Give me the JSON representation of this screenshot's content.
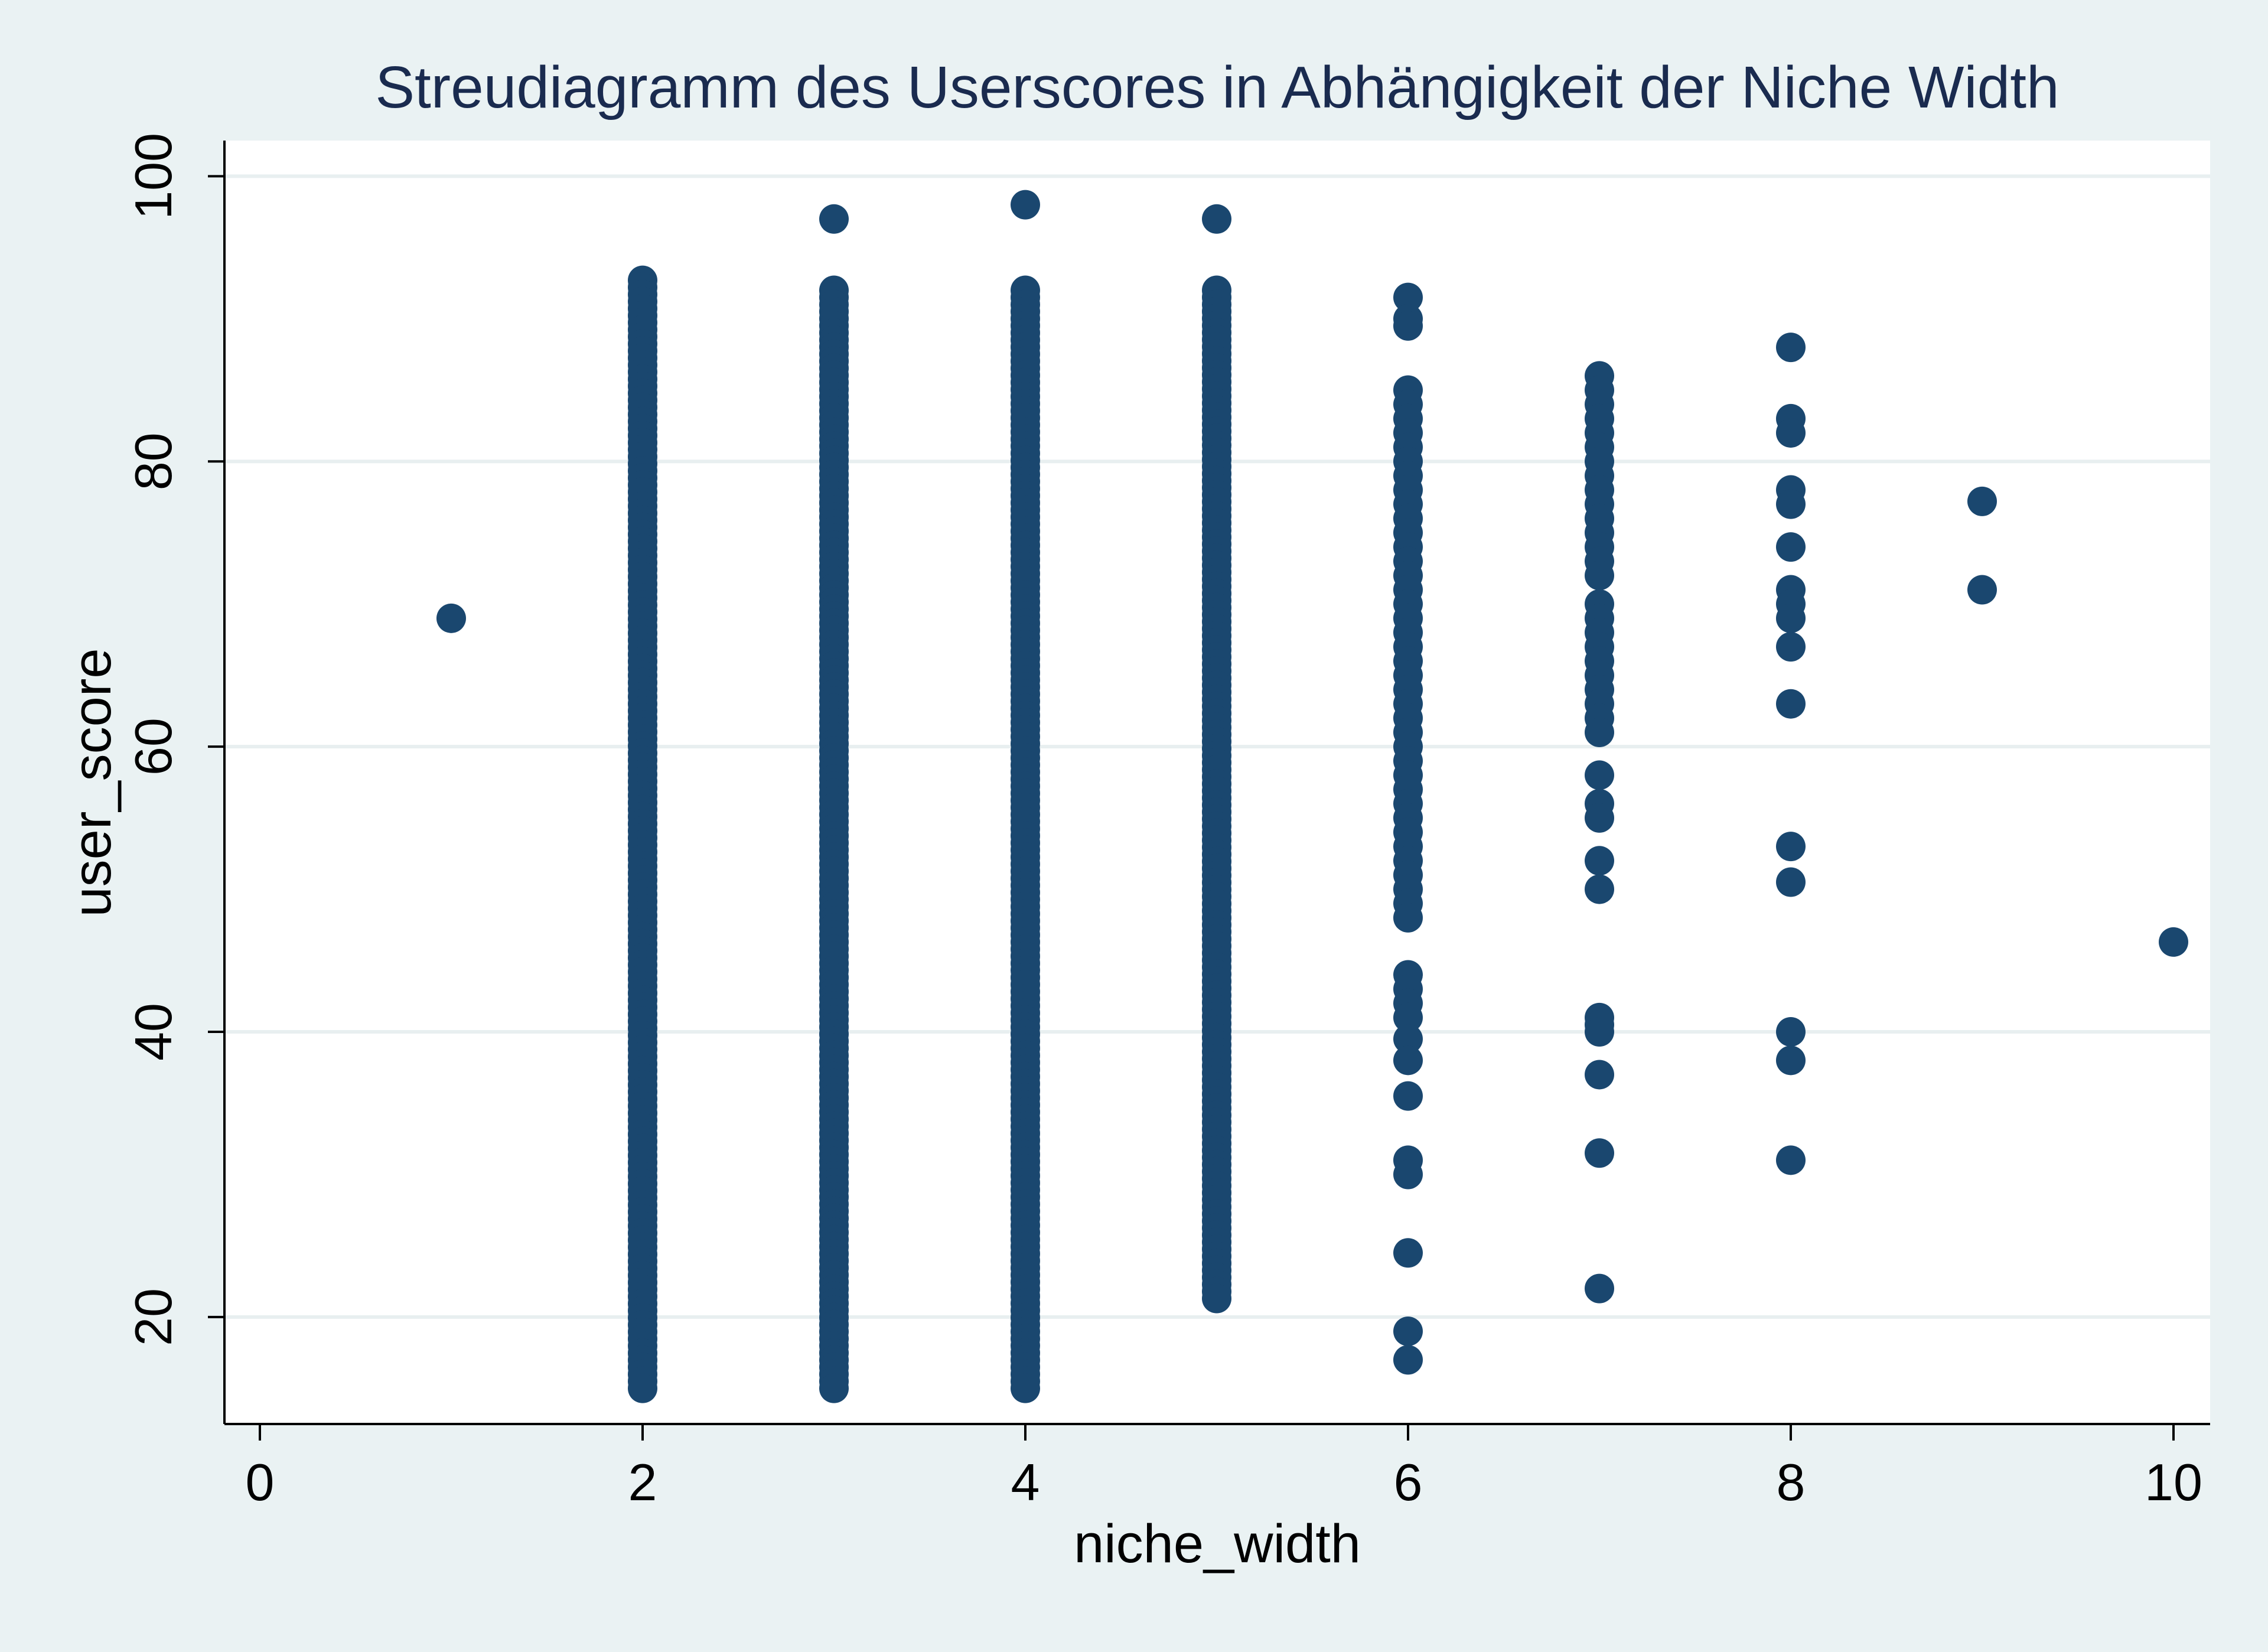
{
  "chart_data": {
    "type": "scatter",
    "title": "Streudiagramm des Userscores in Abhängigkeit der Niche Width",
    "xlabel": "niche_width",
    "ylabel": "user_score",
    "xlim": [
      0,
      10
    ],
    "ylim": [
      12.5,
      102.5
    ],
    "xticks": [
      0,
      2,
      4,
      6,
      8,
      10
    ],
    "yticks": [
      20,
      40,
      60,
      80,
      100
    ],
    "xtick_labels": [
      "0",
      "2",
      "4",
      "6",
      "8",
      "10"
    ],
    "ytick_labels": [
      "20",
      "40",
      "60",
      "80",
      "100"
    ],
    "grid": "horizontal",
    "legend": "none",
    "colors": {
      "background": "#eaf2f3",
      "plot_background": "#ffffff",
      "marker": "#1a476f",
      "grid": "#e8eff0",
      "axis": "#000000",
      "title": "#1a2b4f"
    },
    "columns": [
      {
        "x": 2,
        "y_min": 15,
        "y_max": 92.7
      },
      {
        "x": 3,
        "y_min": 15,
        "y_max": 92
      },
      {
        "x": 4,
        "y_min": 15,
        "y_max": 92
      },
      {
        "x": 5,
        "y_min": 21.3,
        "y_max": 92
      }
    ],
    "points": [
      {
        "x": 1,
        "y": 69
      },
      {
        "x": 3,
        "y": 97
      },
      {
        "x": 4,
        "y": 98
      },
      {
        "x": 5,
        "y": 97
      },
      {
        "x": 6,
        "y": 91.5
      },
      {
        "x": 6,
        "y": 90
      },
      {
        "x": 6,
        "y": 89.5
      },
      {
        "x": 6,
        "y": 85
      },
      {
        "x": 6,
        "y": 84
      },
      {
        "x": 6,
        "y": 83
      },
      {
        "x": 6,
        "y": 82
      },
      {
        "x": 6,
        "y": 81
      },
      {
        "x": 6,
        "y": 80
      },
      {
        "x": 6,
        "y": 79
      },
      {
        "x": 6,
        "y": 78
      },
      {
        "x": 6,
        "y": 77
      },
      {
        "x": 6,
        "y": 76
      },
      {
        "x": 6,
        "y": 75
      },
      {
        "x": 6,
        "y": 74
      },
      {
        "x": 6,
        "y": 73
      },
      {
        "x": 6,
        "y": 72
      },
      {
        "x": 6,
        "y": 71
      },
      {
        "x": 6,
        "y": 70
      },
      {
        "x": 6,
        "y": 69
      },
      {
        "x": 6,
        "y": 68
      },
      {
        "x": 6,
        "y": 67
      },
      {
        "x": 6,
        "y": 66
      },
      {
        "x": 6,
        "y": 65
      },
      {
        "x": 6,
        "y": 64
      },
      {
        "x": 6,
        "y": 63
      },
      {
        "x": 6,
        "y": 62
      },
      {
        "x": 6,
        "y": 61
      },
      {
        "x": 6,
        "y": 60
      },
      {
        "x": 6,
        "y": 59
      },
      {
        "x": 6,
        "y": 58
      },
      {
        "x": 6,
        "y": 57
      },
      {
        "x": 6,
        "y": 56
      },
      {
        "x": 6,
        "y": 55
      },
      {
        "x": 6,
        "y": 54
      },
      {
        "x": 6,
        "y": 53
      },
      {
        "x": 6,
        "y": 52
      },
      {
        "x": 6,
        "y": 51
      },
      {
        "x": 6,
        "y": 50
      },
      {
        "x": 6,
        "y": 49
      },
      {
        "x": 6,
        "y": 48
      },
      {
        "x": 6,
        "y": 44
      },
      {
        "x": 6,
        "y": 43
      },
      {
        "x": 6,
        "y": 42
      },
      {
        "x": 6,
        "y": 41
      },
      {
        "x": 6,
        "y": 39.5
      },
      {
        "x": 6,
        "y": 38
      },
      {
        "x": 6,
        "y": 35.5
      },
      {
        "x": 6,
        "y": 31
      },
      {
        "x": 6,
        "y": 30
      },
      {
        "x": 6,
        "y": 24.5
      },
      {
        "x": 6,
        "y": 19
      },
      {
        "x": 6,
        "y": 17
      },
      {
        "x": 7,
        "y": 86
      },
      {
        "x": 7,
        "y": 85
      },
      {
        "x": 7,
        "y": 84
      },
      {
        "x": 7,
        "y": 83
      },
      {
        "x": 7,
        "y": 82
      },
      {
        "x": 7,
        "y": 81
      },
      {
        "x": 7,
        "y": 80
      },
      {
        "x": 7,
        "y": 79
      },
      {
        "x": 7,
        "y": 78
      },
      {
        "x": 7,
        "y": 77
      },
      {
        "x": 7,
        "y": 76
      },
      {
        "x": 7,
        "y": 75
      },
      {
        "x": 7,
        "y": 74
      },
      {
        "x": 7,
        "y": 73
      },
      {
        "x": 7,
        "y": 72
      },
      {
        "x": 7,
        "y": 70
      },
      {
        "x": 7,
        "y": 69
      },
      {
        "x": 7,
        "y": 68
      },
      {
        "x": 7,
        "y": 67
      },
      {
        "x": 7,
        "y": 66
      },
      {
        "x": 7,
        "y": 65
      },
      {
        "x": 7,
        "y": 64
      },
      {
        "x": 7,
        "y": 63
      },
      {
        "x": 7,
        "y": 62
      },
      {
        "x": 7,
        "y": 61
      },
      {
        "x": 7,
        "y": 58
      },
      {
        "x": 7,
        "y": 56
      },
      {
        "x": 7,
        "y": 55
      },
      {
        "x": 7,
        "y": 52
      },
      {
        "x": 7,
        "y": 50
      },
      {
        "x": 7,
        "y": 41
      },
      {
        "x": 7,
        "y": 40.5
      },
      {
        "x": 7,
        "y": 40
      },
      {
        "x": 7,
        "y": 37
      },
      {
        "x": 7,
        "y": 31.5
      },
      {
        "x": 7,
        "y": 22
      },
      {
        "x": 8,
        "y": 88
      },
      {
        "x": 8,
        "y": 83
      },
      {
        "x": 8,
        "y": 82
      },
      {
        "x": 8,
        "y": 78
      },
      {
        "x": 8,
        "y": 77
      },
      {
        "x": 8,
        "y": 74
      },
      {
        "x": 8,
        "y": 71
      },
      {
        "x": 8,
        "y": 70
      },
      {
        "x": 8,
        "y": 69
      },
      {
        "x": 8,
        "y": 67
      },
      {
        "x": 8,
        "y": 63
      },
      {
        "x": 8,
        "y": 53
      },
      {
        "x": 8,
        "y": 50.5
      },
      {
        "x": 8,
        "y": 40
      },
      {
        "x": 8,
        "y": 38
      },
      {
        "x": 8,
        "y": 31
      },
      {
        "x": 9,
        "y": 77.2
      },
      {
        "x": 9,
        "y": 71
      },
      {
        "x": 10,
        "y": 46.3
      }
    ]
  }
}
